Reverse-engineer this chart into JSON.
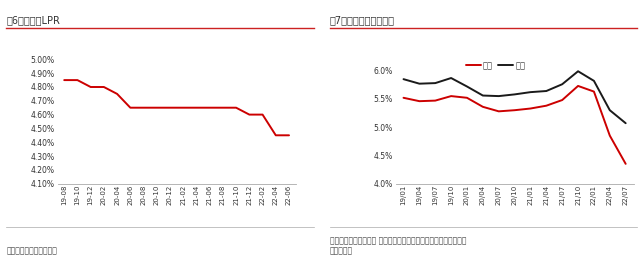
{
  "chart1": {
    "title": "图6：五年期LPR",
    "source": "资料来源：中国人民银行",
    "x_labels": [
      "19-08",
      "19-10",
      "19-12",
      "20-02",
      "20-04",
      "20-06",
      "20-08",
      "20-10",
      "20-12",
      "21-02",
      "21-04",
      "21-06",
      "21-08",
      "21-10",
      "21-12",
      "22-02",
      "22-04",
      "22-06"
    ],
    "y_values": [
      4.85,
      4.85,
      4.8,
      4.8,
      4.75,
      4.65,
      4.65,
      4.65,
      4.65,
      4.65,
      4.65,
      4.65,
      4.65,
      4.65,
      4.6,
      4.6,
      4.45,
      4.45
    ],
    "ylim": [
      4.1,
      5.0
    ],
    "yticks": [
      4.1,
      4.2,
      4.3,
      4.4,
      4.5,
      4.6,
      4.7,
      4.8,
      4.9,
      5.0
    ],
    "line_color": "#cc0000"
  },
  "chart2": {
    "title": "图7：百城主流按揭利率",
    "source": "资料来源：贝壳研究院 注：统计方法问题，该利率水平往往低于人\n民银行公告",
    "x_labels": [
      "19/01",
      "19/04",
      "19/07",
      "19/10",
      "20/01",
      "20/04",
      "20/07",
      "20/10",
      "21/01",
      "21/04",
      "21/07",
      "21/10",
      "22/01",
      "22/04",
      "22/07"
    ],
    "first_home": [
      5.52,
      5.46,
      5.47,
      5.55,
      5.52,
      5.36,
      5.28,
      5.3,
      5.33,
      5.38,
      5.48,
      5.73,
      5.63,
      4.85,
      4.35
    ],
    "second_home": [
      5.85,
      5.77,
      5.78,
      5.87,
      5.72,
      5.56,
      5.55,
      5.58,
      5.62,
      5.64,
      5.76,
      5.99,
      5.82,
      5.3,
      5.07
    ],
    "ylim": [
      4.0,
      6.2
    ],
    "yticks": [
      4.0,
      4.5,
      5.0,
      5.5,
      6.0
    ],
    "first_color": "#cc0000",
    "second_color": "#1a1a1a",
    "legend_labels": [
      "首套",
      "二套"
    ]
  },
  "title_color": "#333333",
  "axis_color": "#aaaaaa",
  "title_line_color": "#cc2222",
  "separator_color": "#aaaaaa",
  "bg_color": "#ffffff",
  "source_color": "#444444"
}
